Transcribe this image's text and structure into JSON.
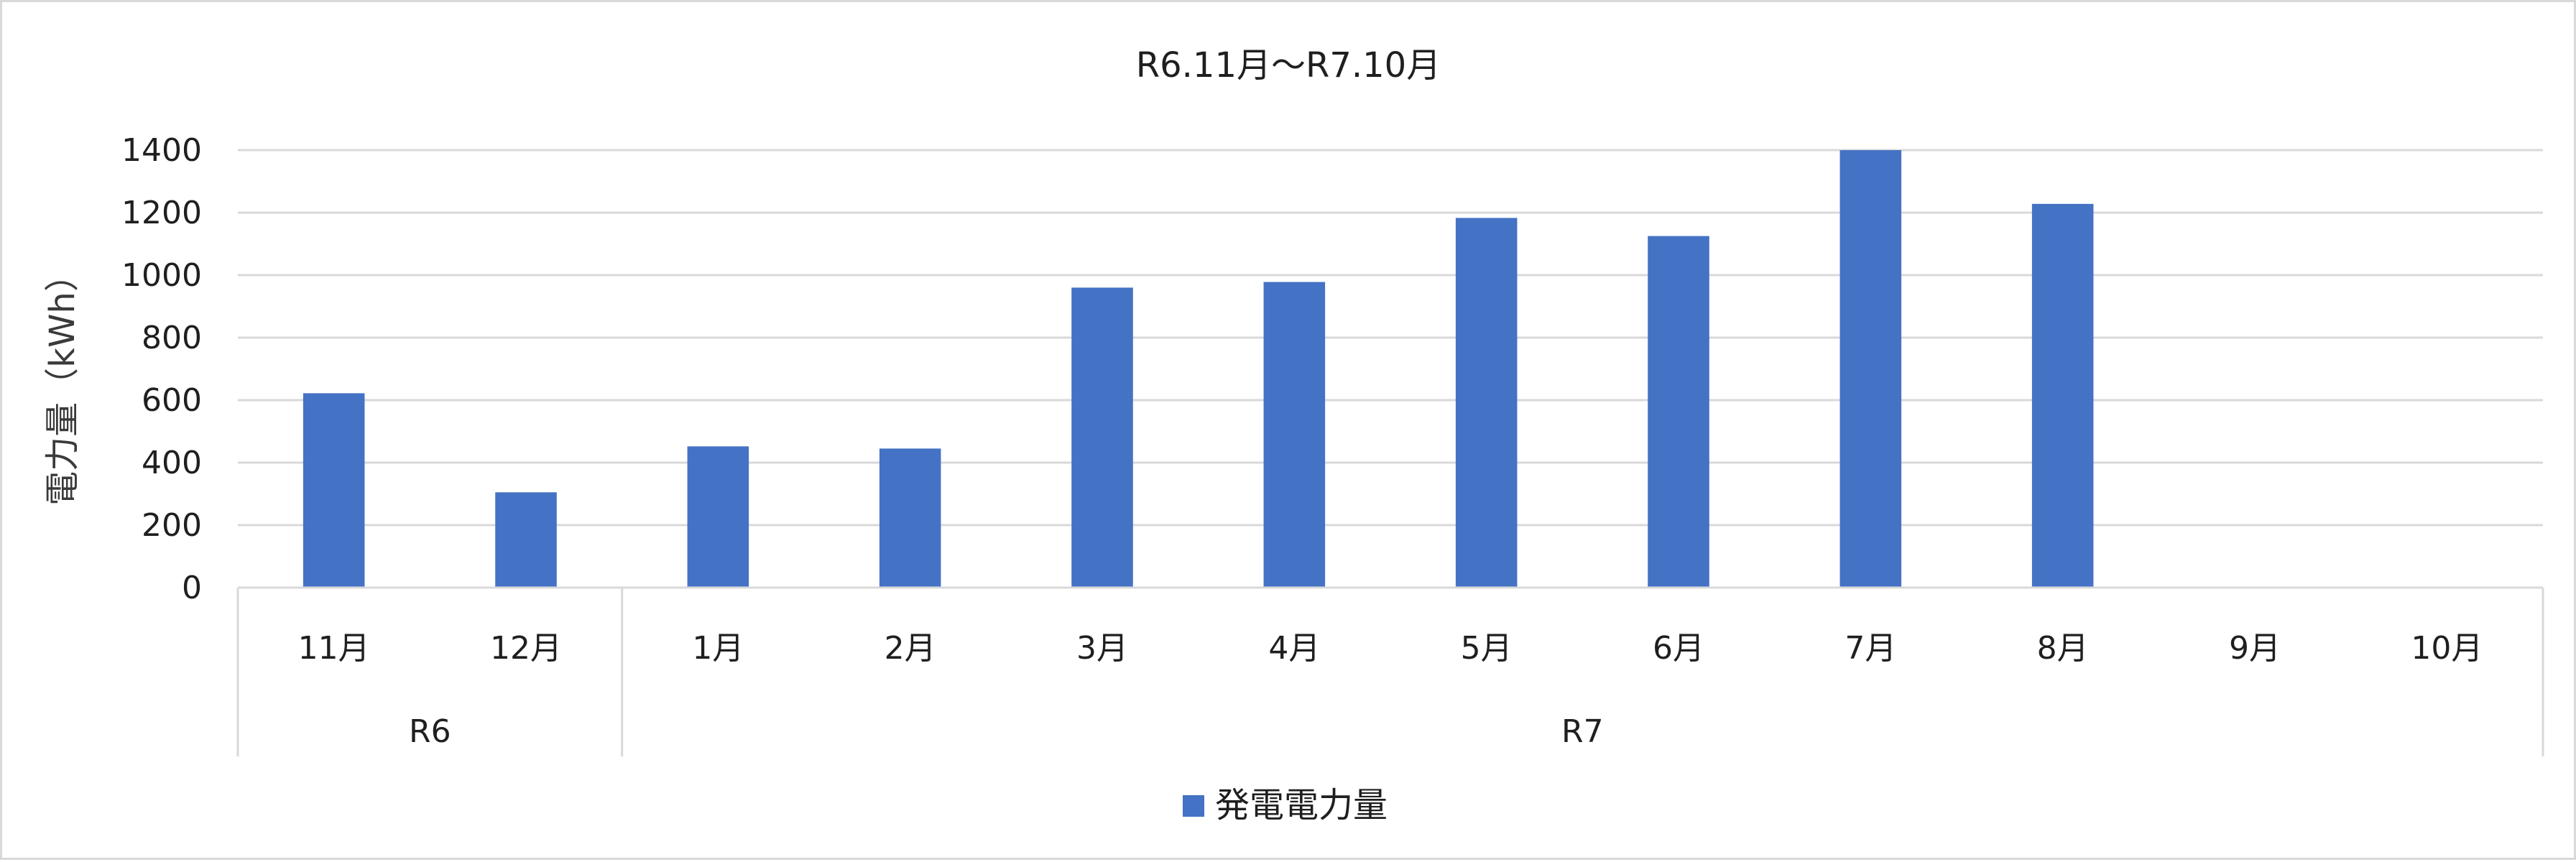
{
  "chart_data": {
    "type": "bar",
    "title": "R6.11月～R7.10月",
    "ylabel": "電力量（kWh）",
    "xlabel": "",
    "categories": [
      "11月",
      "12月",
      "1月",
      "2月",
      "3月",
      "4月",
      "5月",
      "6月",
      "7月",
      "8月",
      "9月",
      "10月"
    ],
    "groups": [
      {
        "label": "R6",
        "count": 2
      },
      {
        "label": "R7",
        "count": 10
      }
    ],
    "series": [
      {
        "name": "発電電力量",
        "color": "#4472c4",
        "values": [
          622,
          305,
          452,
          445,
          960,
          978,
          1183,
          1125,
          1400,
          1228,
          null,
          null
        ]
      }
    ],
    "ylim": [
      0,
      1400
    ],
    "yticks": [
      0,
      200,
      400,
      600,
      800,
      1000,
      1200,
      1400
    ],
    "grid": true,
    "legend_position": "bottom"
  }
}
